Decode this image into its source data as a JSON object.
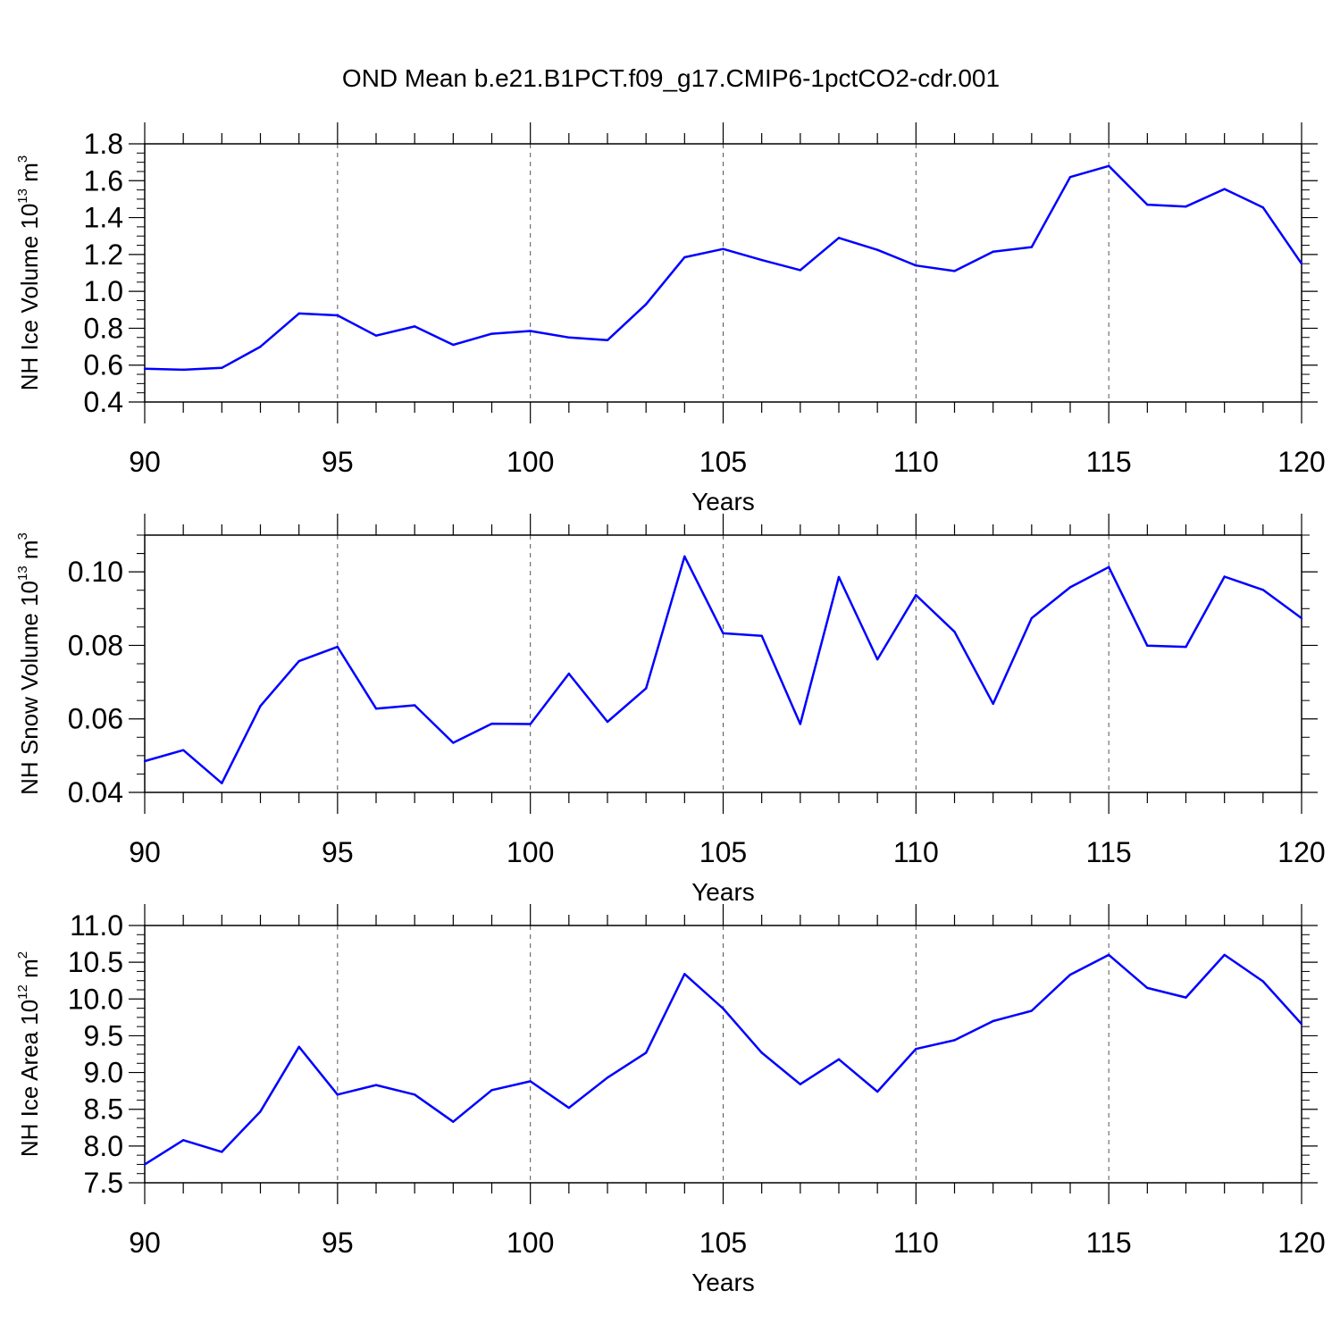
{
  "title": "OND Mean b.e21.B1PCT.f09_g17.CMIP6-1pctCO2-cdr.001",
  "colors": {
    "line": "#0000ff",
    "axis": "#000000",
    "grid": "#555555"
  },
  "chart_data": [
    {
      "type": "line",
      "xlabel": "Years",
      "ylabel": {
        "main": "NH Ice Volume 10",
        "exp": "13",
        "unit": " m",
        "unit_exp": "3"
      },
      "xlim": [
        90,
        120
      ],
      "ylim": [
        0.4,
        1.8
      ],
      "xticks": [
        90,
        95,
        100,
        105,
        110,
        115,
        120
      ],
      "yticks": [
        "0.4",
        "0.6",
        "0.8",
        "1.0",
        "1.2",
        "1.4",
        "1.6",
        "1.8"
      ],
      "x": [
        90,
        91,
        92,
        93,
        94,
        95,
        96,
        97,
        98,
        99,
        100,
        101,
        102,
        103,
        104,
        105,
        106,
        107,
        108,
        109,
        110,
        111,
        112,
        113,
        114,
        115,
        116,
        117,
        118,
        119,
        120
      ],
      "values": [
        0.58,
        0.575,
        0.585,
        0.7,
        0.88,
        0.87,
        0.76,
        0.81,
        0.71,
        0.77,
        0.785,
        0.75,
        0.735,
        0.93,
        1.185,
        1.23,
        1.17,
        1.115,
        1.29,
        1.225,
        1.14,
        1.11,
        1.215,
        1.24,
        1.62,
        1.68,
        1.47,
        1.46,
        1.555,
        1.455,
        1.15
      ],
      "grid_x": [
        95,
        100,
        105,
        110,
        115
      ]
    },
    {
      "type": "line",
      "xlabel": "Years",
      "ylabel": {
        "main": "NH Snow Volume 10",
        "exp": "13",
        "unit": " m",
        "unit_exp": "3"
      },
      "xlim": [
        90,
        120
      ],
      "ylim": [
        0.04,
        0.11
      ],
      "xticks": [
        90,
        95,
        100,
        105,
        110,
        115,
        120
      ],
      "yticks": [
        "0.04",
        "0.06",
        "0.08",
        "0.10"
      ],
      "x": [
        90,
        91,
        92,
        93,
        94,
        95,
        96,
        97,
        98,
        99,
        100,
        101,
        102,
        103,
        104,
        105,
        106,
        107,
        108,
        109,
        110,
        111,
        112,
        113,
        114,
        115,
        116,
        117,
        118,
        119,
        120
      ],
      "values": [
        0.0485,
        0.0515,
        0.0425,
        0.0635,
        0.0757,
        0.0796,
        0.0628,
        0.0637,
        0.0535,
        0.0587,
        0.0586,
        0.0723,
        0.0592,
        0.0683,
        0.1042,
        0.0833,
        0.0826,
        0.0586,
        0.0986,
        0.0762,
        0.0937,
        0.0837,
        0.0641,
        0.0874,
        0.0958,
        0.1013,
        0.0799,
        0.0796,
        0.0987,
        0.0951,
        0.0874
      ],
      "grid_x": [
        95,
        100,
        105,
        110,
        115
      ]
    },
    {
      "type": "line",
      "xlabel": "Years",
      "ylabel": {
        "main": "NH Ice Area 10",
        "exp": "12",
        "unit": " m",
        "unit_exp": "2"
      },
      "xlim": [
        90,
        120
      ],
      "ylim": [
        7.5,
        11.0
      ],
      "xticks": [
        90,
        95,
        100,
        105,
        110,
        115,
        120
      ],
      "yticks": [
        "7.5",
        "8.0",
        "8.5",
        "9.0",
        "9.5",
        "10.0",
        "10.5",
        "11.0"
      ],
      "x": [
        90,
        91,
        92,
        93,
        94,
        95,
        96,
        97,
        98,
        99,
        100,
        101,
        102,
        103,
        104,
        105,
        106,
        107,
        108,
        109,
        110,
        111,
        112,
        113,
        114,
        115,
        116,
        117,
        118,
        119,
        120
      ],
      "values": [
        7.75,
        8.08,
        7.92,
        8.47,
        9.35,
        8.7,
        8.83,
        8.7,
        8.33,
        8.76,
        8.88,
        8.52,
        8.93,
        9.27,
        10.34,
        9.87,
        9.27,
        8.84,
        9.18,
        8.74,
        9.32,
        9.44,
        9.7,
        9.84,
        10.33,
        10.6,
        10.15,
        10.02,
        10.6,
        10.24,
        9.66
      ],
      "grid_x": [
        95,
        100,
        105,
        110,
        115
      ]
    }
  ]
}
